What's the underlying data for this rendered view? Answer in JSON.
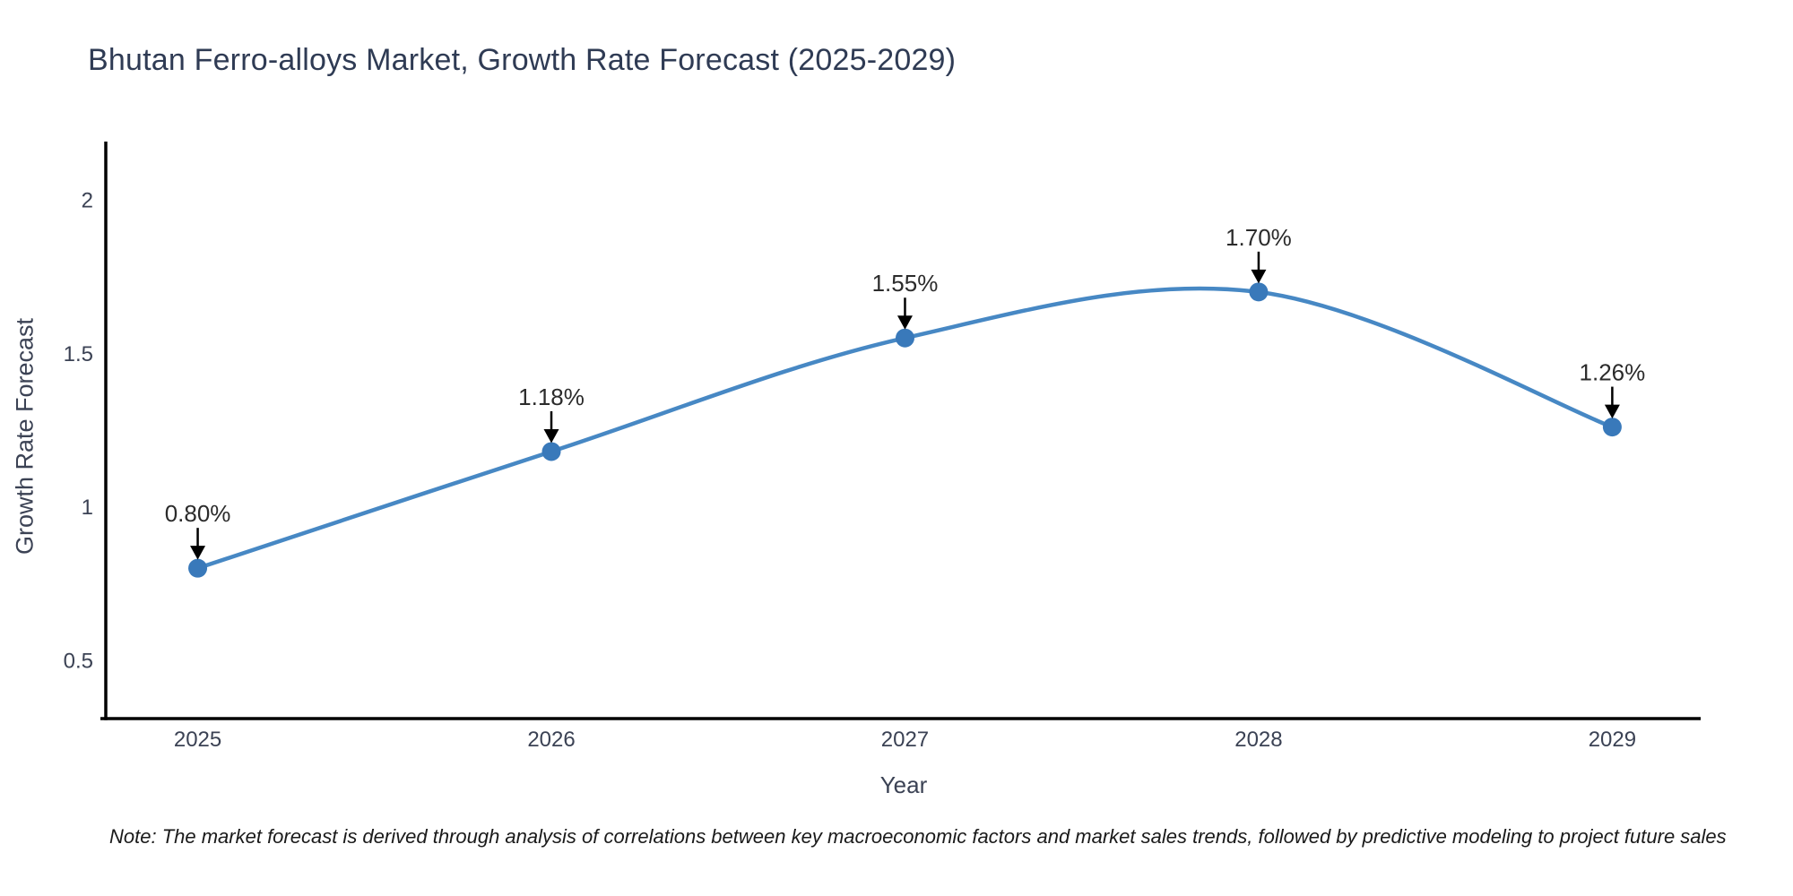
{
  "title": "Bhutan Ferro-alloys Market, Growth Rate Forecast (2025-2029)",
  "note": "Note: The market forecast is derived through analysis of correlations between key macroeconomic factors and market sales trends, followed by predictive modeling to project future sales",
  "chart_data": {
    "type": "line",
    "line_shape": "spline",
    "title": "Bhutan Ferro-alloys Market, Growth Rate Forecast (2025-2029)",
    "xlabel": "Year",
    "ylabel": "Growth Rate Forecast",
    "categories": [
      "2025",
      "2026",
      "2027",
      "2028",
      "2029"
    ],
    "x": [
      2025,
      2026,
      2027,
      2028,
      2029
    ],
    "series": [
      {
        "name": "Growth Rate Forecast",
        "values": [
          0.8,
          1.18,
          1.55,
          1.7,
          1.26
        ]
      }
    ],
    "annotations": [
      "0.80%",
      "1.18%",
      "1.55%",
      "1.70%",
      "1.26%"
    ],
    "yticks": [
      0.5,
      1,
      1.5,
      2
    ],
    "xlim": [
      2024.74,
      2029.25
    ],
    "ylim": [
      0.31,
      2.19
    ],
    "grid": false,
    "legend": "none",
    "colors": {
      "line": "#4788c4",
      "marker": "#3979ba",
      "axis": "#000000",
      "tick_text": "#3b4254",
      "title_text": "#2f3b54",
      "annotation_text": "#2b2b2b",
      "arrow": "#000000",
      "note_text": "#1a1a1a",
      "background": "#ffffff"
    }
  }
}
